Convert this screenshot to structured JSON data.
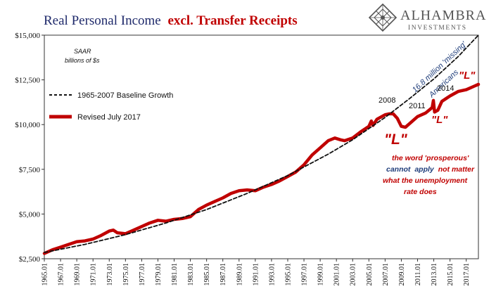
{
  "colors": {
    "title_dark": "#1f2a6b",
    "title_red": "#c00000",
    "series_red": "#c00000",
    "baseline": "#111111",
    "annotation_blue": "#1f3d7a",
    "logo": "#555555",
    "axis": "#333333"
  },
  "title": {
    "part1": "Real Personal Income",
    "part2": "excl. Transfer Receipts"
  },
  "logo": {
    "name": "ALHAMBRA",
    "tagline": "INVESTMENTS",
    "icon": "diamond-lattice-icon"
  },
  "chart_data": {
    "type": "line",
    "units_line1": "SAAR",
    "units_line2": "billions of $s",
    "ylim": [
      2500,
      15000
    ],
    "yticks": [
      2500,
      5000,
      7500,
      10000,
      12500,
      15000
    ],
    "ytick_labels": [
      "$2,500",
      "$5,000",
      "$7,500",
      "$10,000",
      "$12,500",
      "$15,000"
    ],
    "xlim": [
      1965.0,
      2018.5
    ],
    "xticks": [
      1965,
      1967,
      1969,
      1971,
      1973,
      1975,
      1977,
      1979,
      1981,
      1983,
      1985,
      1987,
      1989,
      1991,
      1993,
      1995,
      1997,
      1999,
      2001,
      2003,
      2005,
      2007,
      2009,
      2011,
      2013,
      2015,
      2017
    ],
    "xtick_labels": [
      "1965.01",
      "1967.01",
      "1969.01",
      "1971.01",
      "1973.01",
      "1975.01",
      "1977.01",
      "1979.01",
      "1981.01",
      "1983.01",
      "1985.01",
      "1987.01",
      "1989.01",
      "1991.01",
      "1993.01",
      "1995.01",
      "1997.01",
      "1999.01",
      "2001.01",
      "2003.01",
      "2005.01",
      "2007.01",
      "2009.01",
      "2011.01",
      "2013.01",
      "2015.01",
      "2017.01"
    ],
    "legend": [
      "1965-2007 Baseline Growth",
      "Revised July 2017"
    ],
    "series": [
      {
        "name": "1965-2007 Baseline Growth",
        "style": "dashed",
        "x": [
          1965.0,
          1970.0,
          1975.0,
          1980.0,
          1985.0,
          1990.0,
          1995.0,
          2000.0,
          2003.0,
          2007.0,
          2010.0,
          2013.0,
          2016.0,
          2018.5
        ],
        "y": [
          2850,
          3300,
          3850,
          4500,
          5250,
          6150,
          7150,
          8350,
          9150,
          10400,
          11450,
          12550,
          13800,
          15000
        ]
      },
      {
        "name": "Revised July 2017",
        "style": "solid",
        "x": [
          1965.0,
          1966.0,
          1967.0,
          1968.0,
          1969.0,
          1970.0,
          1971.0,
          1972.0,
          1973.0,
          1973.5,
          1974.0,
          1975.0,
          1976.0,
          1977.0,
          1978.0,
          1979.0,
          1980.0,
          1981.0,
          1982.0,
          1983.0,
          1984.0,
          1985.0,
          1986.0,
          1987.0,
          1988.0,
          1989.0,
          1990.0,
          1991.0,
          1992.0,
          1993.0,
          1994.0,
          1995.0,
          1996.0,
          1997.0,
          1998.0,
          1999.0,
          2000.0,
          2000.8,
          2001.5,
          2002.0,
          2003.0,
          2004.0,
          2005.0,
          2005.3,
          2005.5,
          2006.0,
          2007.0,
          2007.5,
          2008.0,
          2008.5,
          2009.0,
          2009.5,
          2010.0,
          2011.0,
          2012.0,
          2012.8,
          2012.95,
          2013.1,
          2013.5,
          2014.0,
          2015.0,
          2016.0,
          2017.0,
          2018.0,
          2018.5
        ],
        "y": [
          2800,
          3000,
          3150,
          3300,
          3450,
          3500,
          3600,
          3800,
          4050,
          4100,
          3950,
          3900,
          4100,
          4300,
          4500,
          4650,
          4600,
          4700,
          4750,
          4850,
          5250,
          5500,
          5700,
          5900,
          6150,
          6300,
          6350,
          6300,
          6500,
          6650,
          6850,
          7100,
          7350,
          7750,
          8300,
          8700,
          9100,
          9250,
          9150,
          9100,
          9250,
          9600,
          9900,
          10200,
          9950,
          10300,
          10550,
          10600,
          10600,
          10350,
          9900,
          9850,
          10050,
          10450,
          10650,
          10950,
          11350,
          10700,
          10800,
          11300,
          11600,
          11850,
          11950,
          12150,
          12250
        ]
      }
    ]
  },
  "annotations": {
    "missing_line1": "16.8 million 'missing'",
    "missing_line2": "Americans",
    "year_2008": "2008",
    "year_2011": "2011",
    "year_2014": "2014",
    "L_top": "\"L\"",
    "L_middle": "\"L\"",
    "L_big": "\"L\"",
    "comment_line1": "the word 'prosperous'",
    "comment_line2_a": "cannot",
    "comment_line2_b": "apply",
    "comment_line2_c": "not matter",
    "comment_line3": "what the unemployment",
    "comment_line4": "rate does"
  }
}
